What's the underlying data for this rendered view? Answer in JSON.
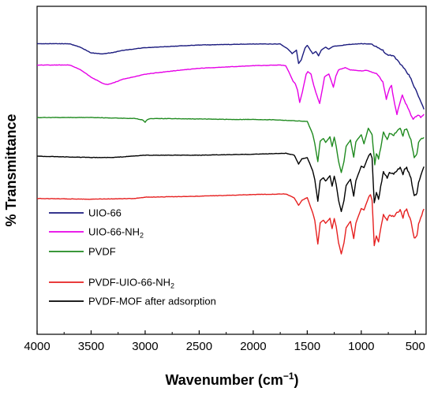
{
  "chart_data": {
    "type": "line",
    "xlabel": "Wavenumber (cm",
    "xlabel_sup": "−1",
    "xlabel_end": ")",
    "ylabel": "% Transmittance",
    "xlim": [
      4000,
      400
    ],
    "x_reversed": true,
    "xticks": [
      "4000",
      "3500",
      "3000",
      "2500",
      "2000",
      "1500",
      "1000",
      "500"
    ],
    "y_ticks_shown": false,
    "grid": false,
    "legend_position": "lower-left",
    "series": [
      {
        "name": "UIO-66",
        "name_parts": [
          "UIO-66"
        ],
        "color": "#1a1a7e",
        "points": [
          [
            4000,
            88.6
          ],
          [
            3700,
            88.6
          ],
          [
            3600,
            87.5
          ],
          [
            3500,
            85.8
          ],
          [
            3400,
            85.5
          ],
          [
            3300,
            85.9
          ],
          [
            3200,
            86.6
          ],
          [
            3000,
            87.4
          ],
          [
            2500,
            88.2
          ],
          [
            2000,
            88.5
          ],
          [
            1750,
            88.5
          ],
          [
            1680,
            87
          ],
          [
            1640,
            85.6
          ],
          [
            1600,
            86.6
          ],
          [
            1580,
            82.5
          ],
          [
            1555,
            83.7
          ],
          [
            1520,
            87.3
          ],
          [
            1500,
            88.1
          ],
          [
            1450,
            85.6
          ],
          [
            1420,
            86.2
          ],
          [
            1395,
            84.9
          ],
          [
            1370,
            86.7
          ],
          [
            1330,
            87.5
          ],
          [
            1300,
            86.9
          ],
          [
            1260,
            87.8
          ],
          [
            1100,
            88.4
          ],
          [
            1000,
            88.6
          ],
          [
            900,
            88.5
          ],
          [
            850,
            87.5
          ],
          [
            800,
            86.5
          ],
          [
            760,
            85.1
          ],
          [
            700,
            84.8
          ],
          [
            650,
            83
          ],
          [
            600,
            80.8
          ],
          [
            550,
            78.6
          ],
          [
            500,
            74.8
          ],
          [
            460,
            71.8
          ],
          [
            420,
            68.6
          ]
        ]
      },
      {
        "name": "UIO-66-NH2",
        "name_parts": [
          "UIO-66-NH",
          "2"
        ],
        "color": "#e600e6",
        "points": [
          [
            4000,
            82.1
          ],
          [
            3700,
            82.1
          ],
          [
            3600,
            80.7
          ],
          [
            3500,
            78.4
          ],
          [
            3400,
            76.6
          ],
          [
            3350,
            76.1
          ],
          [
            3300,
            76.6
          ],
          [
            3200,
            77.8
          ],
          [
            3000,
            79.3
          ],
          [
            2800,
            80.1
          ],
          [
            2500,
            81.1
          ],
          [
            2000,
            81.9
          ],
          [
            1750,
            82.1
          ],
          [
            1700,
            81.9
          ],
          [
            1660,
            79.3
          ],
          [
            1630,
            77.1
          ],
          [
            1610,
            76.4
          ],
          [
            1590,
            74.4
          ],
          [
            1570,
            70.7
          ],
          [
            1545,
            73.9
          ],
          [
            1510,
            79.3
          ],
          [
            1495,
            80.1
          ],
          [
            1465,
            79.3
          ],
          [
            1440,
            75.9
          ],
          [
            1420,
            73.7
          ],
          [
            1385,
            70.4
          ],
          [
            1360,
            74.7
          ],
          [
            1340,
            78.5
          ],
          [
            1300,
            79.4
          ],
          [
            1258,
            75.3
          ],
          [
            1235,
            78.8
          ],
          [
            1210,
            80.6
          ],
          [
            1150,
            81.3
          ],
          [
            1100,
            80.6
          ],
          [
            1000,
            80.3
          ],
          [
            950,
            80.5
          ],
          [
            900,
            79.9
          ],
          [
            850,
            79.2
          ],
          [
            800,
            76.8
          ],
          [
            768,
            71.7
          ],
          [
            740,
            74.8
          ],
          [
            720,
            75.8
          ],
          [
            700,
            71.7
          ],
          [
            670,
            67.1
          ],
          [
            640,
            70.7
          ],
          [
            620,
            72.9
          ],
          [
            590,
            70.4
          ],
          [
            560,
            68.4
          ],
          [
            520,
            65.4
          ],
          [
            480,
            67
          ],
          [
            450,
            66.3
          ],
          [
            420,
            67.1
          ]
        ]
      },
      {
        "name": "PVDF",
        "name_parts": [
          "PVDF"
        ],
        "color": "#1f8a1f",
        "points": [
          [
            4000,
            66.1
          ],
          [
            3500,
            66.1
          ],
          [
            3100,
            65.8
          ],
          [
            3025,
            65.4
          ],
          [
            3000,
            64.7
          ],
          [
            2980,
            65.4
          ],
          [
            2950,
            65.8
          ],
          [
            2600,
            65.7
          ],
          [
            2200,
            65.5
          ],
          [
            2000,
            65.5
          ],
          [
            1800,
            65.4
          ],
          [
            1500,
            64.9
          ],
          [
            1450,
            61.1
          ],
          [
            1430,
            58.1
          ],
          [
            1402,
            52.7
          ],
          [
            1380,
            58.9
          ],
          [
            1350,
            59.7
          ],
          [
            1330,
            58.5
          ],
          [
            1290,
            60.2
          ],
          [
            1270,
            57.3
          ],
          [
            1250,
            60.1
          ],
          [
            1232,
            57.3
          ],
          [
            1210,
            52.7
          ],
          [
            1185,
            49.3
          ],
          [
            1160,
            52.7
          ],
          [
            1140,
            57.3
          ],
          [
            1100,
            59.2
          ],
          [
            1070,
            54
          ],
          [
            1050,
            58.7
          ],
          [
            1000,
            60.9
          ],
          [
            975,
            58.1
          ],
          [
            955,
            60.4
          ],
          [
            935,
            62.8
          ],
          [
            900,
            60.9
          ],
          [
            875,
            51.6
          ],
          [
            860,
            55.2
          ],
          [
            840,
            53.5
          ],
          [
            810,
            58.7
          ],
          [
            795,
            61.5
          ],
          [
            760,
            59.5
          ],
          [
            740,
            61.2
          ],
          [
            700,
            60.7
          ],
          [
            670,
            61.9
          ],
          [
            640,
            62.7
          ],
          [
            614,
            60.4
          ],
          [
            600,
            62.3
          ],
          [
            580,
            62.8
          ],
          [
            540,
            59.3
          ],
          [
            510,
            53.8
          ],
          [
            485,
            54.9
          ],
          [
            470,
            58.3
          ],
          [
            440,
            59.9
          ],
          [
            420,
            60
          ]
        ]
      },
      {
        "name": "PVDF-UIO-66-NH2",
        "name_parts": [
          "PVDF-UIO-66-NH",
          "2"
        ],
        "color": "#e62020",
        "points": [
          [
            4000,
            41.4
          ],
          [
            3500,
            41.2
          ],
          [
            3100,
            41.4
          ],
          [
            3000,
            41.8
          ],
          [
            2500,
            42.1
          ],
          [
            2000,
            42.6
          ],
          [
            1700,
            42.8
          ],
          [
            1620,
            41.6
          ],
          [
            1580,
            39.3
          ],
          [
            1550,
            40.8
          ],
          [
            1500,
            41.7
          ],
          [
            1450,
            37.1
          ],
          [
            1430,
            34.7
          ],
          [
            1402,
            27.5
          ],
          [
            1380,
            34
          ],
          [
            1350,
            34.8
          ],
          [
            1330,
            33.8
          ],
          [
            1290,
            35.4
          ],
          [
            1270,
            32.2
          ],
          [
            1250,
            35.3
          ],
          [
            1232,
            32.8
          ],
          [
            1210,
            27.9
          ],
          [
            1185,
            24.5
          ],
          [
            1160,
            27.9
          ],
          [
            1140,
            32.5
          ],
          [
            1100,
            34.4
          ],
          [
            1070,
            29.2
          ],
          [
            1050,
            33.9
          ],
          [
            1000,
            38.4
          ],
          [
            975,
            37.9
          ],
          [
            950,
            40.1
          ],
          [
            930,
            41.9
          ],
          [
            915,
            42.6
          ],
          [
            900,
            40.9
          ],
          [
            880,
            27.1
          ],
          [
            860,
            30.1
          ],
          [
            840,
            28.4
          ],
          [
            810,
            33.9
          ],
          [
            795,
            36.7
          ],
          [
            760,
            34.7
          ],
          [
            740,
            36.4
          ],
          [
            700,
            35.9
          ],
          [
            670,
            37.1
          ],
          [
            640,
            37.9
          ],
          [
            614,
            35.6
          ],
          [
            600,
            37.5
          ],
          [
            580,
            38
          ],
          [
            540,
            34.5
          ],
          [
            510,
            29.3
          ],
          [
            485,
            30.1
          ],
          [
            470,
            33.5
          ],
          [
            440,
            36.5
          ],
          [
            420,
            38.2
          ]
        ]
      },
      {
        "name": "PVDF-MOF after adsorption",
        "name_parts": [
          "PVDF-MOF after adsorption"
        ],
        "color": "#000000",
        "points": [
          [
            4000,
            54.3
          ],
          [
            3500,
            53.9
          ],
          [
            3300,
            53.9
          ],
          [
            3000,
            54.6
          ],
          [
            2500,
            54.6
          ],
          [
            2000,
            54.9
          ],
          [
            1700,
            55.2
          ],
          [
            1620,
            54.6
          ],
          [
            1580,
            51.9
          ],
          [
            1550,
            53.5
          ],
          [
            1500,
            53.9
          ],
          [
            1450,
            49.9
          ],
          [
            1430,
            47.1
          ],
          [
            1402,
            40.6
          ],
          [
            1380,
            46.9
          ],
          [
            1350,
            47.7
          ],
          [
            1330,
            46.7
          ],
          [
            1290,
            48.3
          ],
          [
            1270,
            45.1
          ],
          [
            1250,
            48.2
          ],
          [
            1232,
            45.7
          ],
          [
            1210,
            40.8
          ],
          [
            1185,
            37.4
          ],
          [
            1160,
            40.8
          ],
          [
            1140,
            45.4
          ],
          [
            1100,
            47.3
          ],
          [
            1070,
            42.1
          ],
          [
            1050,
            46.8
          ],
          [
            1000,
            51.3
          ],
          [
            975,
            50.8
          ],
          [
            950,
            53
          ],
          [
            930,
            54.5
          ],
          [
            915,
            55.2
          ],
          [
            900,
            53.8
          ],
          [
            880,
            40
          ],
          [
            860,
            43
          ],
          [
            840,
            41.3
          ],
          [
            810,
            46.8
          ],
          [
            795,
            49.6
          ],
          [
            760,
            47.6
          ],
          [
            740,
            49.3
          ],
          [
            700,
            48.8
          ],
          [
            670,
            50
          ],
          [
            640,
            50.8
          ],
          [
            614,
            48.5
          ],
          [
            600,
            50.4
          ],
          [
            580,
            50.9
          ],
          [
            540,
            47.4
          ],
          [
            510,
            42.2
          ],
          [
            485,
            43
          ],
          [
            470,
            46.4
          ],
          [
            440,
            49.4
          ],
          [
            420,
            51.1
          ]
        ]
      }
    ]
  }
}
